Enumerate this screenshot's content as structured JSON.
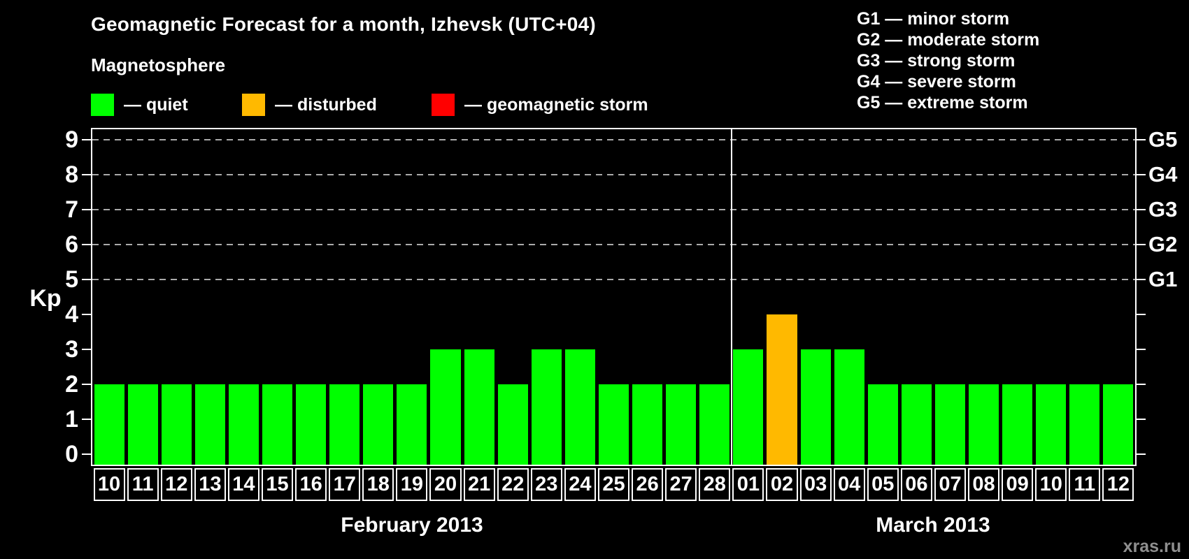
{
  "header": {
    "title": "Geomagnetic Forecast for a month, Izhevsk (UTC+04)",
    "subtitle": "Magnetosphere"
  },
  "legend": {
    "items": [
      {
        "state": "quiet",
        "color": "#00ff00",
        "label": "— quiet"
      },
      {
        "state": "disturbed",
        "color": "#ffb900",
        "label": "— disturbed"
      },
      {
        "state": "storm",
        "color": "#ff0000",
        "label": "— geomagnetic storm"
      }
    ]
  },
  "storm_scale_legend": {
    "items": [
      "G1 — minor storm",
      "G2 — moderate storm",
      "G3 — strong storm",
      "G4 — severe storm",
      "G5 — extreme storm"
    ]
  },
  "watermark": "xras.ru",
  "chart_data": {
    "type": "bar",
    "title": "Geomagnetic Forecast for a month, Izhevsk (UTC+04)",
    "ylabel": "Kp",
    "ylim": [
      0,
      9.3
    ],
    "yticks": [
      0,
      1,
      2,
      3,
      4,
      5,
      6,
      7,
      8,
      9
    ],
    "gridlines_at": [
      5,
      6,
      7,
      8,
      9
    ],
    "grid": "dashed",
    "legend_position": "top",
    "right_axis": [
      {
        "value": 5,
        "label": "G1"
      },
      {
        "value": 6,
        "label": "G2"
      },
      {
        "value": 7,
        "label": "G3"
      },
      {
        "value": 8,
        "label": "G4"
      },
      {
        "value": 9,
        "label": "G5"
      }
    ],
    "colors": {
      "quiet": "#00ff00",
      "disturbed": "#ffb900",
      "storm": "#ff0000"
    },
    "months": [
      {
        "label": "February 2013",
        "days": [
          {
            "day": "10",
            "kp": 2,
            "state": "quiet"
          },
          {
            "day": "11",
            "kp": 2,
            "state": "quiet"
          },
          {
            "day": "12",
            "kp": 2,
            "state": "quiet"
          },
          {
            "day": "13",
            "kp": 2,
            "state": "quiet"
          },
          {
            "day": "14",
            "kp": 2,
            "state": "quiet"
          },
          {
            "day": "15",
            "kp": 2,
            "state": "quiet"
          },
          {
            "day": "16",
            "kp": 2,
            "state": "quiet"
          },
          {
            "day": "17",
            "kp": 2,
            "state": "quiet"
          },
          {
            "day": "18",
            "kp": 2,
            "state": "quiet"
          },
          {
            "day": "19",
            "kp": 2,
            "state": "quiet"
          },
          {
            "day": "20",
            "kp": 3,
            "state": "quiet"
          },
          {
            "day": "21",
            "kp": 3,
            "state": "quiet"
          },
          {
            "day": "22",
            "kp": 2,
            "state": "quiet"
          },
          {
            "day": "23",
            "kp": 3,
            "state": "quiet"
          },
          {
            "day": "24",
            "kp": 3,
            "state": "quiet"
          },
          {
            "day": "25",
            "kp": 2,
            "state": "quiet"
          },
          {
            "day": "26",
            "kp": 2,
            "state": "quiet"
          },
          {
            "day": "27",
            "kp": 2,
            "state": "quiet"
          },
          {
            "day": "28",
            "kp": 2,
            "state": "quiet"
          }
        ]
      },
      {
        "label": "March 2013",
        "days": [
          {
            "day": "01",
            "kp": 3,
            "state": "quiet"
          },
          {
            "day": "02",
            "kp": 4,
            "state": "disturbed"
          },
          {
            "day": "03",
            "kp": 3,
            "state": "quiet"
          },
          {
            "day": "04",
            "kp": 3,
            "state": "quiet"
          },
          {
            "day": "05",
            "kp": 2,
            "state": "quiet"
          },
          {
            "day": "06",
            "kp": 2,
            "state": "quiet"
          },
          {
            "day": "07",
            "kp": 2,
            "state": "quiet"
          },
          {
            "day": "08",
            "kp": 2,
            "state": "quiet"
          },
          {
            "day": "09",
            "kp": 2,
            "state": "quiet"
          },
          {
            "day": "10",
            "kp": 2,
            "state": "quiet"
          },
          {
            "day": "11",
            "kp": 2,
            "state": "quiet"
          },
          {
            "day": "12",
            "kp": 2,
            "state": "quiet"
          }
        ]
      }
    ]
  }
}
